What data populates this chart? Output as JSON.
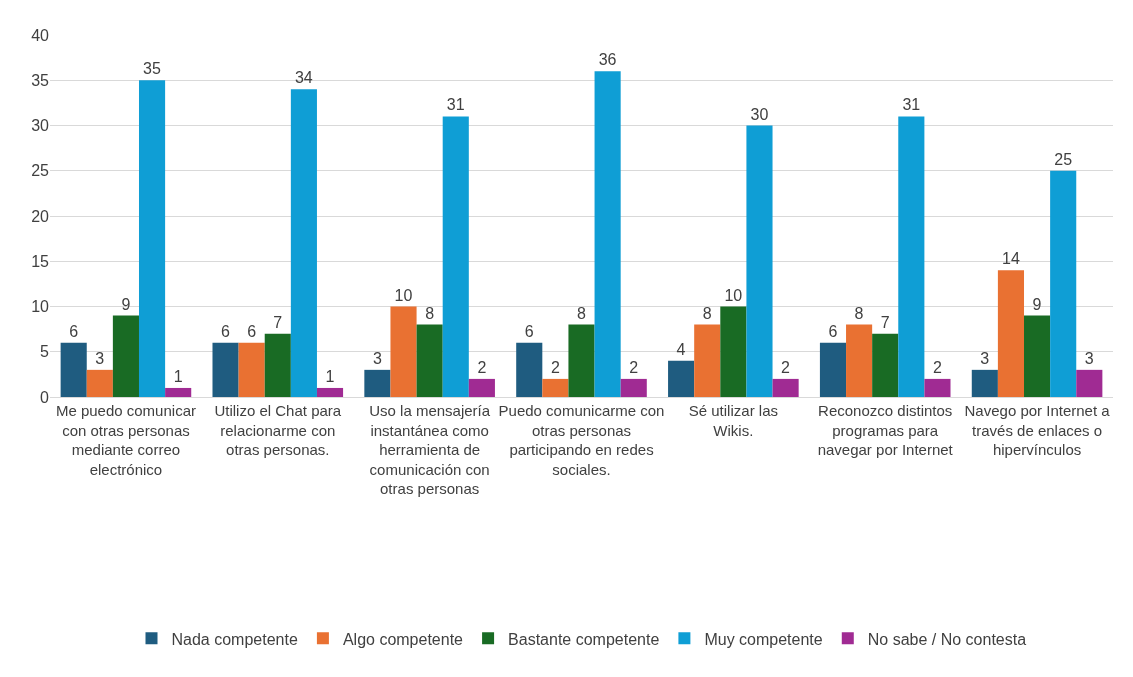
{
  "chart_data": {
    "type": "bar",
    "categories": [
      "Me puedo comunicar con otras personas mediante correo electrónico",
      "Utilizo el Chat para relacionarme con otras personas.",
      "Uso la mensajería instantánea como herramienta de comunicación con otras personas",
      "Puedo comunicarme con otras personas participando en redes sociales.",
      "Sé utilizar las Wikis.",
      "Reconozco distintos programas para navegar por Internet",
      "Navego por Internet a través de enlaces o hipervínculos"
    ],
    "series": [
      {
        "name": "Nada competente",
        "color": "#1f5c80",
        "values": [
          6,
          6,
          3,
          6,
          4,
          6,
          3
        ]
      },
      {
        "name": "Algo competente",
        "color": "#e97132",
        "values": [
          3,
          6,
          10,
          2,
          8,
          8,
          14
        ]
      },
      {
        "name": "Bastante competente",
        "color": "#196b24",
        "values": [
          9,
          7,
          8,
          8,
          10,
          7,
          9
        ]
      },
      {
        "name": "Muy competente",
        "color": "#0f9ed5",
        "values": [
          35,
          34,
          31,
          36,
          30,
          31,
          25
        ]
      },
      {
        "name": "No sabe / No contesta",
        "color": "#a02b93",
        "values": [
          1,
          1,
          2,
          2,
          2,
          2,
          3
        ]
      }
    ],
    "ylim": [
      0,
      40
    ],
    "yticks": [
      0,
      5,
      10,
      15,
      20,
      25,
      30,
      35,
      40
    ],
    "grid": "y",
    "legend": "bottom",
    "data_labels": true
  }
}
